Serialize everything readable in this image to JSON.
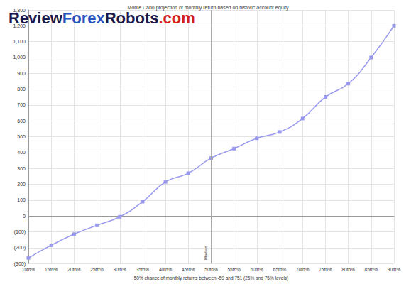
{
  "chart_data": {
    "type": "line",
    "title": "Monte Carlo projection of monthly return based on historic account equity",
    "watermark": "ReviewForexRobots.com",
    "x_label": "50% chance of monthly returns between -59 and 751 (25% and 75% levels)",
    "categories": [
      "10th%",
      "15th%",
      "20th%",
      "25th%",
      "30th%",
      "35th%",
      "40th%",
      "45th%",
      "50th%",
      "55th%",
      "60th%",
      "65th%",
      "70th%",
      "75th%",
      "80th%",
      "85th%",
      "90th%"
    ],
    "values": [
      -265,
      -185,
      -115,
      -59,
      -5,
      90,
      215,
      270,
      365,
      425,
      490,
      530,
      615,
      751,
      835,
      1000,
      1200
    ],
    "color": "#9999ee",
    "marker": "square",
    "line_style": "solid",
    "ylim": [
      -300,
      1300
    ],
    "yticks": [
      {
        "value": -300,
        "label": "(300)"
      },
      {
        "value": -200,
        "label": "(200)"
      },
      {
        "value": -100,
        "label": "(100)"
      },
      0,
      100,
      200,
      300,
      400,
      500,
      600,
      700,
      800,
      900,
      {
        "value": 1000,
        "label": "1,000"
      },
      {
        "value": 1100,
        "label": "1,100"
      },
      {
        "value": 1200,
        "label": "1,200"
      },
      {
        "value": 1300,
        "label": "1,300"
      }
    ],
    "grid": true,
    "annotations": [
      {
        "x": "50th%",
        "label": "Median"
      }
    ]
  }
}
